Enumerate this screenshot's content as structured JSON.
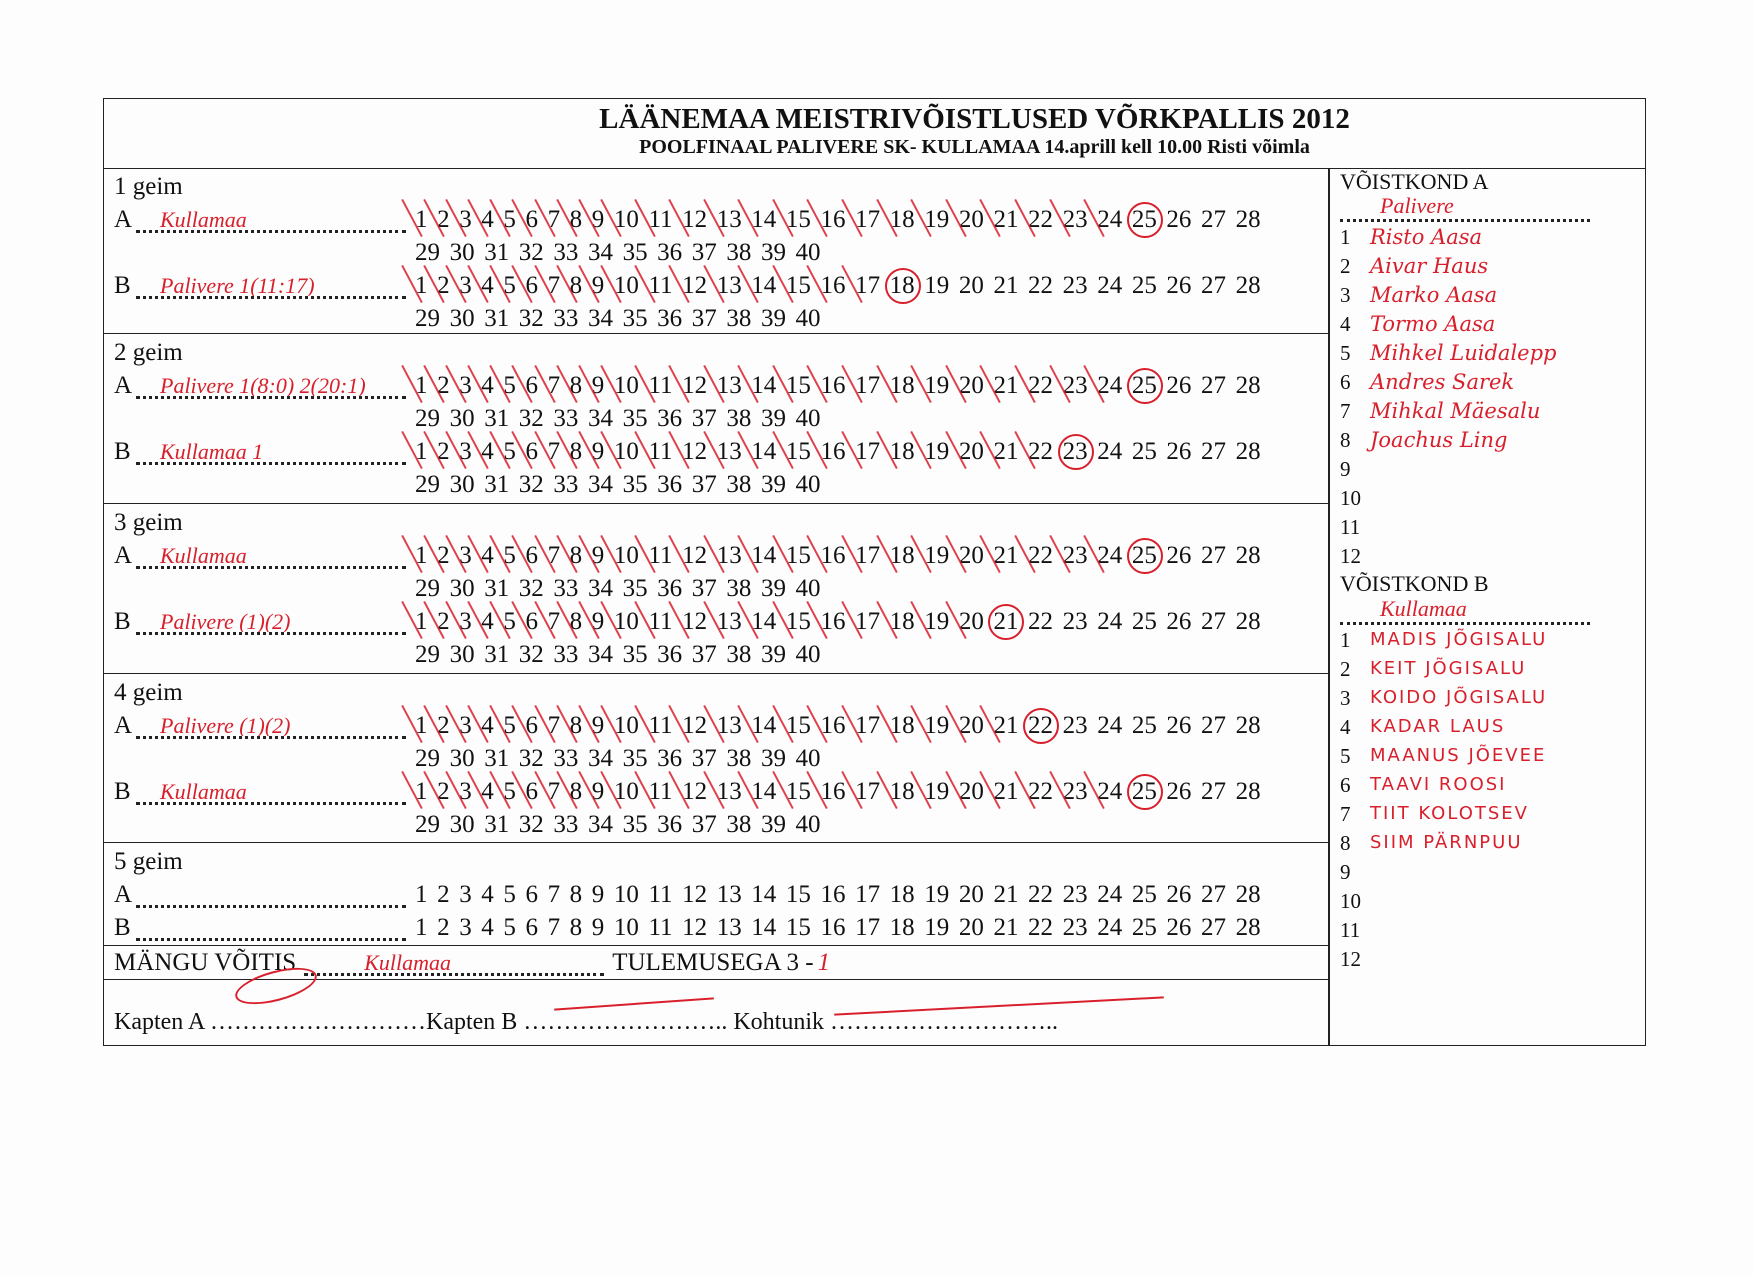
{
  "header": {
    "title": "LÄÄNEMAA  MEISTRIVÕISTLUSED VÕRKPALLIS 2012",
    "subtitle": "POOLFINAAL PALIVERE SK- KULLAMAA  14.aprill kell 10.00 Risti võimla"
  },
  "ink_color": "#d8202c",
  "sets": [
    {
      "label": "1 geim",
      "rows": [
        {
          "side": "A",
          "team": "Kullamaa",
          "score": 25
        },
        {
          "side": "B",
          "team": "Palivere 1(11:17)",
          "score": 18
        }
      ]
    },
    {
      "label": "2 geim",
      "rows": [
        {
          "side": "A",
          "team": "Palivere 1(8:0) 2(20:1)",
          "score": 25
        },
        {
          "side": "B",
          "team": "Kullamaa 1",
          "score": 23
        }
      ]
    },
    {
      "label": "3 geim",
      "rows": [
        {
          "side": "A",
          "team": "Kullamaa",
          "score": 25
        },
        {
          "side": "B",
          "team": "Palivere (1)(2)",
          "score": 21
        }
      ]
    },
    {
      "label": "4 geim",
      "rows": [
        {
          "side": "A",
          "team": "Palivere (1)(2)",
          "score": 22
        },
        {
          "side": "B",
          "team": "Kullamaa",
          "score": 25
        }
      ]
    },
    {
      "label": "5 geim",
      "rows": [
        {
          "side": "A",
          "team": "",
          "score": 0
        },
        {
          "side": "B",
          "team": "",
          "score": 0
        }
      ]
    }
  ],
  "winner": {
    "label": "MÄNGU VÕITIS",
    "team": "Kullamaa",
    "result_label": "TULEMUSEGA 3 -",
    "result_loser": "1"
  },
  "signatures": {
    "captain_a": "Kapten A",
    "captain_b": "Kapten B",
    "referee": "Kohtunik"
  },
  "team_a": {
    "heading": "VÕISTKOND A",
    "name": "Palivere",
    "players": [
      "Risto Aasa",
      "Aivar Haus",
      "Marko Aasa",
      "Tormo Aasa",
      "Mihkel Luidalepp",
      "Andres Sarek",
      "Mihkal Mäesalu",
      "Joachus Ling",
      "",
      "",
      "",
      ""
    ]
  },
  "team_b": {
    "heading": "VÕISTKOND B",
    "name": "Kullamaa",
    "players": [
      "MADIS JÕGISALU",
      "KEIT JÕGISALU",
      "KOIDO JÕGISALU",
      "KADAR LAUS",
      "MAANUS JÕEVEE",
      "TAAVI ROOSI",
      "TIIT KOLOTSEV",
      "SIIM PÄRNPUU",
      "",
      "",
      "",
      ""
    ]
  }
}
